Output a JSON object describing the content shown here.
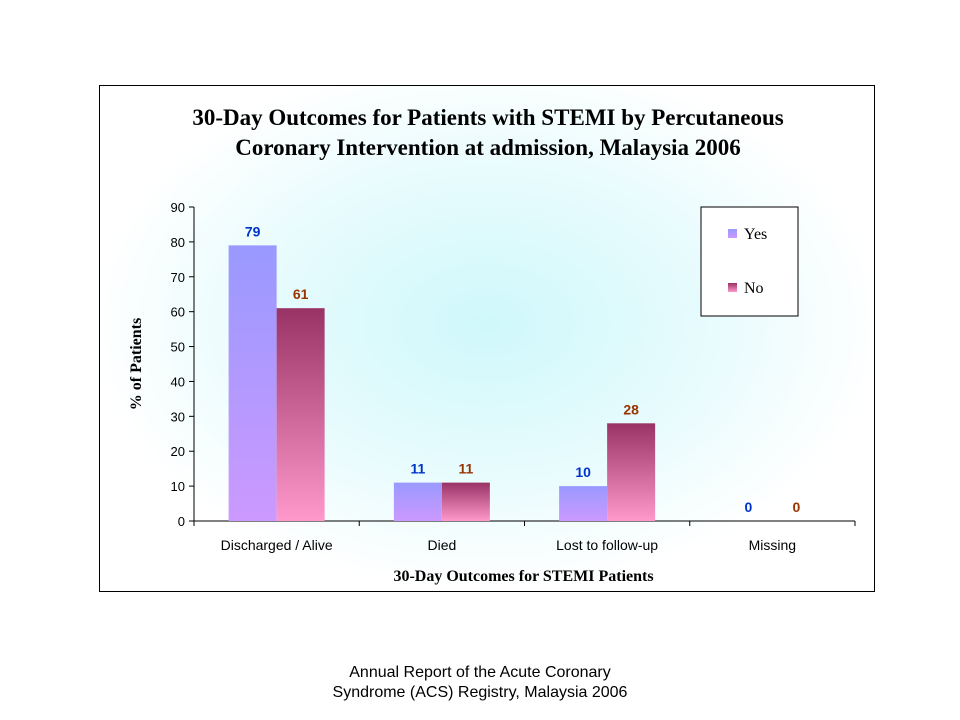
{
  "chart_data": {
    "type": "bar",
    "title": [
      "30-Day Outcomes for Patients with STEMI by Percutaneous",
      "Coronary Intervention at admission, Malaysia 2006"
    ],
    "xlabel": "30-Day Outcomes for STEMI Patients",
    "ylabel": "% of Patients",
    "ylim": [
      0,
      90
    ],
    "yticks": [
      0,
      10,
      20,
      30,
      40,
      50,
      60,
      70,
      80,
      90
    ],
    "categories": [
      "Discharged / Alive",
      "Died",
      "Lost to follow-up",
      "Missing"
    ],
    "series": [
      {
        "name": "Yes",
        "values": [
          79,
          11,
          10,
          0
        ],
        "color_top": "#9999ff",
        "color_bottom": "#cc99ff",
        "label_color": "#0033cc"
      },
      {
        "name": "No",
        "values": [
          61,
          11,
          28,
          0
        ],
        "color_top": "#993366",
        "color_bottom": "#ff99cc",
        "label_color": "#993300"
      }
    ],
    "legend_position": "top-right",
    "grid": false
  },
  "caption": {
    "line1": "Annual Report of the Acute Coronary",
    "line2": "Syndrome (ACS) Registry, Malaysia 2006"
  }
}
